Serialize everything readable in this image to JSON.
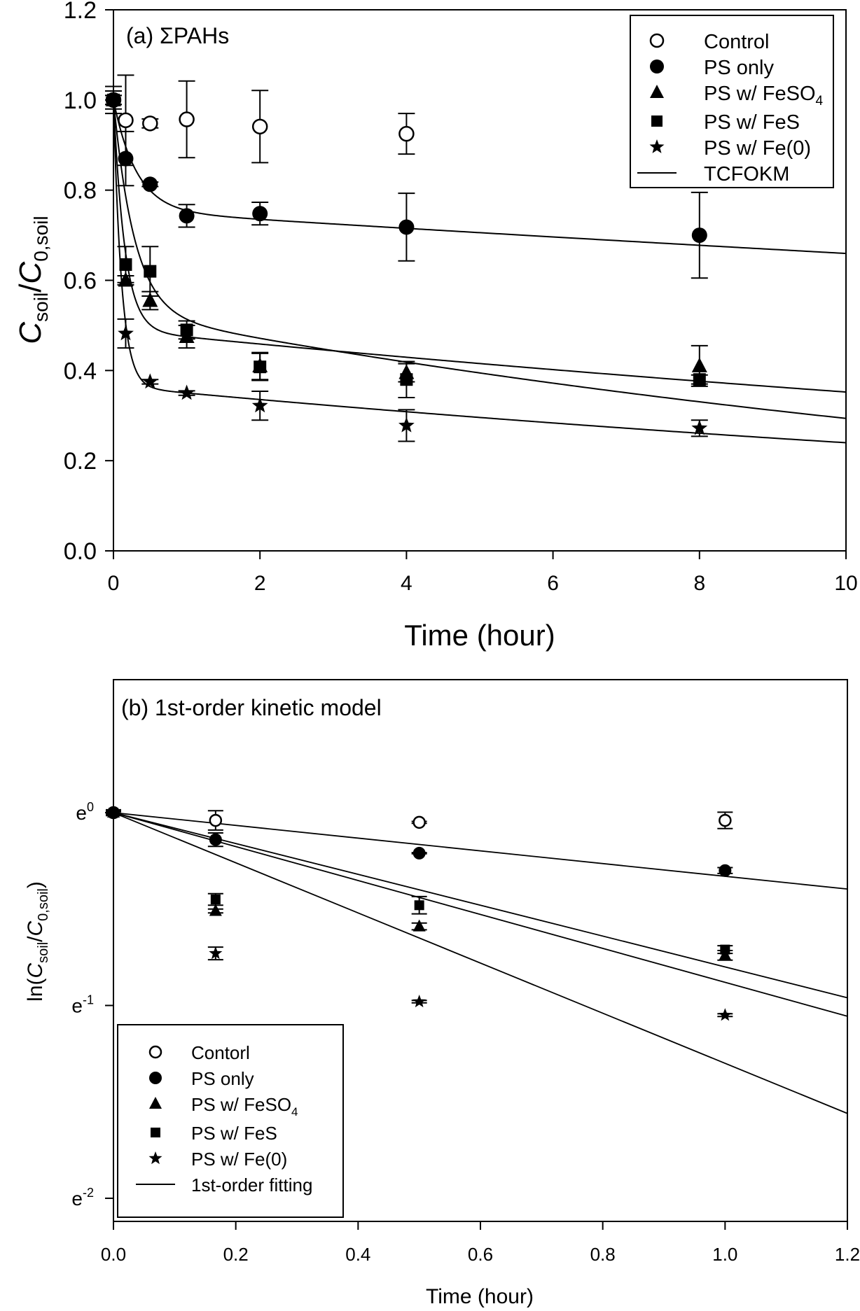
{
  "chart_data": [
    {
      "id": "a",
      "type": "scatter",
      "title": "(a) ΣPAHs",
      "xlabel": "Time (hour)",
      "ylabel": {
        "main": "C",
        "sub1": "soil",
        "sep": "/",
        "main2": "C",
        "sub2": "0,soil"
      },
      "xlim": [
        0,
        10
      ],
      "ylim": [
        0,
        1.2
      ],
      "xticks": [
        0,
        2,
        4,
        6,
        8,
        10
      ],
      "xtick_labels": [
        "0",
        "2",
        "4",
        "6",
        "8",
        "10"
      ],
      "yticks": [
        0,
        0.2,
        0.4,
        0.6,
        0.8,
        1.0,
        1.2
      ],
      "ytick_labels": [
        "0.0",
        "0.2",
        "0.4",
        "0.6",
        "0.8",
        "1.0",
        "1.2"
      ],
      "grid": false,
      "legend_position": "top-right",
      "legend": [
        {
          "label": "Control",
          "marker": "open-circle"
        },
        {
          "label": "PS only",
          "marker": "filled-circle"
        },
        {
          "label": "PS w/ FeSO",
          "sub": "4",
          "marker": "triangle"
        },
        {
          "label": "PS w/ FeS",
          "marker": "square"
        },
        {
          "label": "PS w/ Fe(0)",
          "marker": "star"
        },
        {
          "label": "TCFOKM",
          "marker": "line"
        }
      ],
      "series": [
        {
          "name": "Control",
          "marker": "open-circle",
          "x": [
            0,
            0.167,
            0.5,
            1,
            2,
            4
          ],
          "y": [
            1.0,
            0.955,
            0.948,
            0.957,
            0.941,
            0.925
          ],
          "err": [
            0.03,
            0.1,
            0.01,
            0.085,
            0.08,
            0.045
          ]
        },
        {
          "name": "PS only",
          "marker": "filled-circle",
          "x": [
            0,
            0.167,
            0.5,
            1,
            2,
            4,
            8
          ],
          "y": [
            1.0,
            0.87,
            0.813,
            0.743,
            0.748,
            0.718,
            0.7
          ],
          "err": [
            0.02,
            0.06,
            0.005,
            0.025,
            0.025,
            0.075,
            0.095
          ]
        },
        {
          "name": "PS w/ FeSO4",
          "marker": "triangle",
          "x": [
            0,
            0.167,
            0.5,
            1,
            2,
            4,
            8
          ],
          "y": [
            1.0,
            0.6,
            0.555,
            0.475,
            0.41,
            0.395,
            0.41
          ],
          "err": [
            0.01,
            0.01,
            0.02,
            0.025,
            0.03,
            0.02,
            0.045
          ]
        },
        {
          "name": "PS w/ FeS",
          "marker": "square",
          "x": [
            0,
            0.167,
            0.5,
            1,
            2,
            4,
            8
          ],
          "y": [
            1.0,
            0.635,
            0.62,
            0.49,
            0.408,
            0.38,
            0.38
          ],
          "err": [
            0.01,
            0.04,
            0.055,
            0.02,
            0.03,
            0.04,
            0.01
          ]
        },
        {
          "name": "PS w/ Fe(0)",
          "marker": "star",
          "x": [
            0,
            0.167,
            0.5,
            1,
            2,
            4,
            8
          ],
          "y": [
            1.0,
            0.482,
            0.375,
            0.35,
            0.322,
            0.278,
            0.272
          ],
          "err": [
            0.01,
            0.032,
            0.005,
            0.005,
            0.032,
            0.035,
            0.018
          ]
        }
      ],
      "fits": [
        {
          "name": "TCFOKM PS only",
          "model": "TCFOKM",
          "F": 0.245,
          "k_fast": 3.2,
          "k_slow": 0.0135
        },
        {
          "name": "TCFOKM PS w/ FeSO4",
          "model": "TCFOKM",
          "F": 0.51,
          "k_fast": 6.5,
          "k_slow": 0.033
        },
        {
          "name": "TCFOKM PS w/ FeS",
          "model": "TCFOKM",
          "F": 0.47,
          "k_fast": 3.5,
          "k_slow": 0.059
        },
        {
          "name": "TCFOKM PS w/ Fe(0)",
          "model": "TCFOKM",
          "F": 0.635,
          "k_fast": 9.0,
          "k_slow": 0.042
        }
      ]
    },
    {
      "id": "b",
      "type": "scatter",
      "title": "(b) 1st-order kinetic model",
      "xlabel": "Time (hour)",
      "ylabel": {
        "pre": "ln(",
        "main": "C",
        "sub1": "soil",
        "sep": "/",
        "main2": "C",
        "sub2": "0,soil",
        "post": ")"
      },
      "xlim": [
        0,
        1.2
      ],
      "ylim_ln": [
        -2.12,
        0.69
      ],
      "xticks": [
        0,
        0.2,
        0.4,
        0.6,
        0.8,
        1.0,
        1.2
      ],
      "xtick_labels": [
        "0.0",
        "0.2",
        "0.4",
        "0.6",
        "0.8",
        "1.0",
        "1.2"
      ],
      "yticks_ln": [
        0,
        -1,
        -2
      ],
      "ytick_labels": [
        {
          "base": "e",
          "exp": "0"
        },
        {
          "base": "e",
          "exp": "-1"
        },
        {
          "base": "e",
          "exp": "-2"
        }
      ],
      "grid": false,
      "legend_position": "bottom-left",
      "legend": [
        {
          "label": "Contorl",
          "marker": "open-circle"
        },
        {
          "label": "PS only",
          "marker": "filled-circle"
        },
        {
          "label": "PS w/ FeSO",
          "sub": "4",
          "marker": "triangle"
        },
        {
          "label": "PS w/ FeS",
          "marker": "square"
        },
        {
          "label": "PS w/ Fe(0)",
          "marker": "star"
        },
        {
          "label": "1st-order fitting",
          "marker": "line"
        }
      ],
      "series": [
        {
          "name": "Control",
          "marker": "open-circle",
          "x": [
            0,
            0.167,
            0.5,
            1.0
          ],
          "ln_y": [
            0,
            -0.04,
            -0.05,
            -0.04
          ],
          "err": [
            0.03,
            0.1,
            0.01,
            0.085
          ]
        },
        {
          "name": "PS only",
          "marker": "filled-circle",
          "x": [
            0,
            0.167,
            0.5,
            1.0
          ],
          "ln_y": [
            0,
            -0.14,
            -0.21,
            -0.3
          ],
          "err": [
            0.02,
            0.07,
            0.006,
            0.03
          ]
        },
        {
          "name": "PS w/ FeSO4",
          "marker": "triangle",
          "x": [
            0,
            0.167,
            0.5,
            1.0
          ],
          "ln_y": [
            0,
            -0.51,
            -0.59,
            -0.74
          ],
          "err": [
            0.01,
            0.02,
            0.035,
            0.05
          ]
        },
        {
          "name": "PS w/ FeS",
          "marker": "square",
          "x": [
            0,
            0.167,
            0.5,
            1.0
          ],
          "ln_y": [
            0,
            -0.45,
            -0.48,
            -0.71
          ],
          "err": [
            0.01,
            0.06,
            0.09,
            0.04
          ]
        },
        {
          "name": "PS w/ Fe(0)",
          "marker": "star",
          "x": [
            0,
            0.167,
            0.5,
            1.0
          ],
          "ln_y": [
            0,
            -0.73,
            -0.98,
            -1.05
          ],
          "err": [
            0.01,
            0.065,
            0.013,
            0.014
          ]
        }
      ],
      "fits": [
        {
          "name": "1st-order PS only",
          "k": 0.33
        },
        {
          "name": "1st-order PS w/ FeS",
          "k": 0.8
        },
        {
          "name": "1st-order PS w/ FeSO4",
          "k": 0.88
        },
        {
          "name": "1st-order PS w/ Fe(0)",
          "k": 1.3
        }
      ]
    }
  ]
}
